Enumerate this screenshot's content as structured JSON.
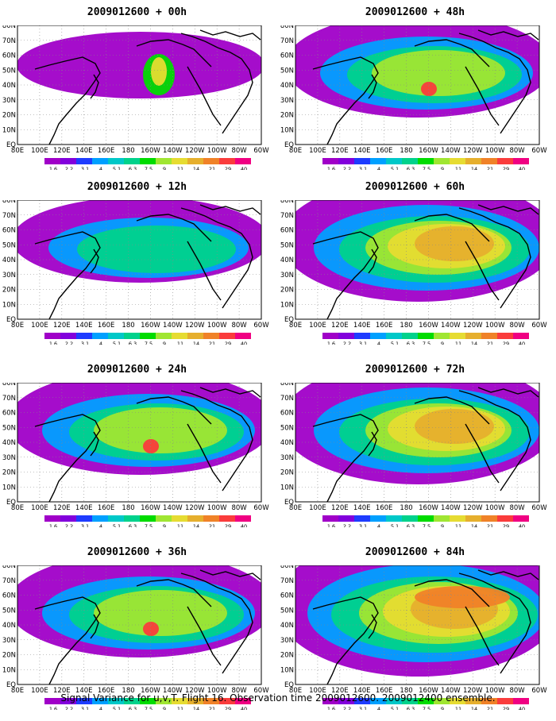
{
  "colors": {
    "scale": [
      "#a000c8",
      "#8200dc",
      "#1e3cff",
      "#00a0ff",
      "#00c8c8",
      "#00d28c",
      "#00dc00",
      "#a0e632",
      "#e6dc32",
      "#e6af2d",
      "#f08228",
      "#fa3c3c",
      "#f00082"
    ]
  },
  "colorbar": {
    "labels": [
      "1.6",
      "2.2",
      "3.1",
      "4",
      "5.1",
      "6.3",
      "7.5",
      "9",
      "11",
      "14",
      "21",
      "29",
      "40"
    ]
  },
  "axes": {
    "lat_labels": [
      "80N",
      "70N",
      "60N",
      "50N",
      "40N",
      "30N",
      "20N",
      "10N",
      "EQ"
    ],
    "lon_labels": [
      "80E",
      "100E",
      "120E",
      "140E",
      "160E",
      "180",
      "160W",
      "140W",
      "120W",
      "100W",
      "80W",
      "60W"
    ]
  },
  "panels": [
    {
      "title": "2009012600 + 00h",
      "level": 1
    },
    {
      "title": "2009012600 + 48h",
      "level": 3
    },
    {
      "title": "2009012600 + 12h",
      "level": 2
    },
    {
      "title": "2009012600 + 60h",
      "level": 4
    },
    {
      "title": "2009012600 + 24h",
      "level": 3
    },
    {
      "title": "2009012600 + 72h",
      "level": 4
    },
    {
      "title": "2009012600 + 36h",
      "level": 3
    },
    {
      "title": "2009012600 + 84h",
      "level": 5
    }
  ],
  "caption": "Signal Variance for u,v,T. Flight 16. Observation time 2009012600. 2009012400 ensemble."
}
